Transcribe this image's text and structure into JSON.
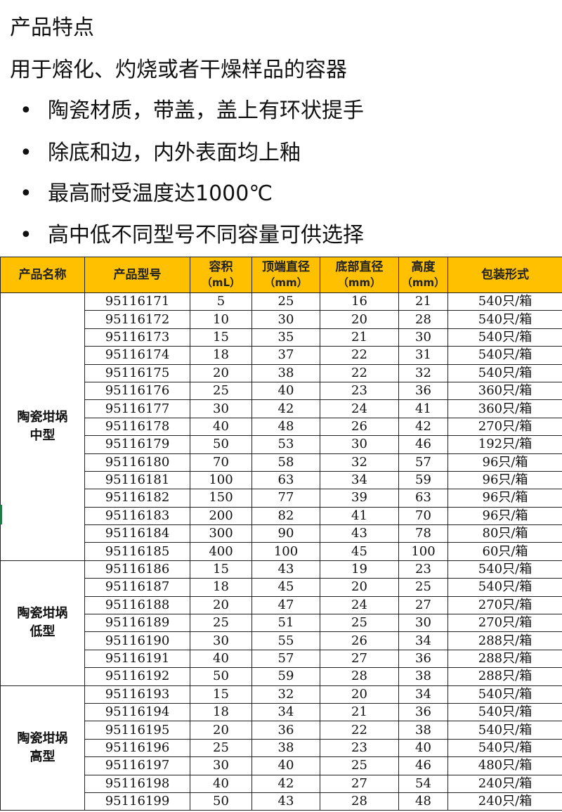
{
  "title": "产品特点",
  "subtitle": "用于熔化、灼烧或者干燥样品的容器",
  "bullet_char": "•",
  "bullets": [
    "陶瓷材质，带盖，盖上有环状提手",
    "除底和边，内外表面均上釉",
    "最高耐受温度达1000℃",
    "高中低不同型号不同容量可供选择"
  ],
  "table": {
    "header_color": "#FFC000",
    "headers": [
      {
        "line1": "产品名称",
        "line2": ""
      },
      {
        "line1": "产品型号",
        "line2": ""
      },
      {
        "line1": "容积",
        "line2": "（mL）"
      },
      {
        "line1": "顶端直径",
        "line2": "（mm）"
      },
      {
        "line1": "底部直径",
        "line2": "（mm）"
      },
      {
        "line1": "高度",
        "line2": "（mm）"
      },
      {
        "line1": "包装形式",
        "line2": ""
      }
    ],
    "groups": [
      {
        "name_line1": "陶瓷坩埚",
        "name_line2": "中型",
        "rows": [
          [
            "95116171",
            "5",
            "25",
            "16",
            "21",
            "540只/箱"
          ],
          [
            "95116172",
            "10",
            "30",
            "20",
            "28",
            "540只/箱"
          ],
          [
            "95116173",
            "15",
            "35",
            "21",
            "30",
            "540只/箱"
          ],
          [
            "95116174",
            "18",
            "37",
            "22",
            "31",
            "540只/箱"
          ],
          [
            "95116175",
            "20",
            "38",
            "22",
            "32",
            "540只/箱"
          ],
          [
            "95116176",
            "25",
            "40",
            "23",
            "36",
            "360只/箱"
          ],
          [
            "95116177",
            "30",
            "42",
            "24",
            "41",
            "360只/箱"
          ],
          [
            "95116178",
            "40",
            "48",
            "26",
            "42",
            "270只/箱"
          ],
          [
            "95116179",
            "50",
            "53",
            "30",
            "46",
            "192只/箱"
          ],
          [
            "95116180",
            "70",
            "58",
            "32",
            "57",
            "96只/箱"
          ],
          [
            "95116181",
            "100",
            "63",
            "34",
            "59",
            "96只/箱"
          ],
          [
            "95116182",
            "150",
            "77",
            "39",
            "63",
            "96只/箱"
          ],
          [
            "95116183",
            "200",
            "82",
            "41",
            "70",
            "96只/箱"
          ],
          [
            "95116184",
            "300",
            "90",
            "43",
            "78",
            "80只/箱"
          ],
          [
            "95116185",
            "400",
            "100",
            "45",
            "100",
            "60只/箱"
          ]
        ]
      },
      {
        "name_line1": "陶瓷坩埚",
        "name_line2": "低型",
        "rows": [
          [
            "95116186",
            "15",
            "43",
            "19",
            "23",
            "540只/箱"
          ],
          [
            "95116187",
            "18",
            "45",
            "20",
            "25",
            "540只/箱"
          ],
          [
            "95116188",
            "20",
            "47",
            "24",
            "27",
            "270只/箱"
          ],
          [
            "95116189",
            "25",
            "51",
            "25",
            "30",
            "270只/箱"
          ],
          [
            "95116190",
            "30",
            "55",
            "26",
            "34",
            "288只/箱"
          ],
          [
            "95116191",
            "40",
            "57",
            "27",
            "36",
            "288只/箱"
          ],
          [
            "95116192",
            "50",
            "59",
            "28",
            "38",
            "288只/箱"
          ]
        ]
      },
      {
        "name_line1": "陶瓷坩埚",
        "name_line2": "高型",
        "rows": [
          [
            "95116193",
            "15",
            "32",
            "20",
            "34",
            "540只/箱"
          ],
          [
            "95116194",
            "18",
            "34",
            "21",
            "36",
            "540只/箱"
          ],
          [
            "95116195",
            "20",
            "36",
            "22",
            "38",
            "540只/箱"
          ],
          [
            "95116196",
            "25",
            "38",
            "23",
            "40",
            "540只/箱"
          ],
          [
            "95116197",
            "30",
            "40",
            "25",
            "46",
            "480只/箱"
          ],
          [
            "95116198",
            "40",
            "42",
            "27",
            "54",
            "240只/箱"
          ],
          [
            "95116199",
            "50",
            "43",
            "28",
            "48",
            "240只/箱"
          ]
        ]
      }
    ]
  }
}
